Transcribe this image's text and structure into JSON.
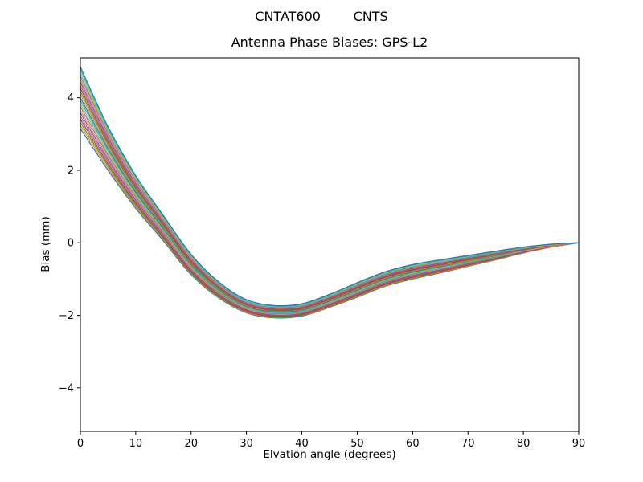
{
  "figure": {
    "suptitle": "CNTAT600        CNTS",
    "axes_title": "Antenna Phase Biases: GPS-L2",
    "xlabel": "Elvation angle (degrees)",
    "ylabel": "Bias (mm)"
  },
  "chart_data": {
    "type": "line",
    "suptitle": "CNTAT600        CNTS",
    "title": "Antenna Phase Biases: GPS-L2",
    "xlabel": "Elvation angle (degrees)",
    "ylabel": "Bias (mm)",
    "xlim": [
      0,
      90
    ],
    "ylim": [
      -5.2,
      5.1
    ],
    "x_ticks": [
      0,
      10,
      20,
      30,
      40,
      50,
      60,
      70,
      80,
      90
    ],
    "y_ticks": [
      -4,
      -2,
      0,
      2,
      4
    ],
    "y_tick_labels": [
      "−4",
      "−2",
      "0",
      "2",
      "4"
    ],
    "grid": false,
    "legend": "none",
    "frame_color": "#000000",
    "line_width": 1.2,
    "x": [
      0,
      5,
      10,
      15,
      20,
      25,
      30,
      35,
      40,
      45,
      50,
      55,
      60,
      65,
      70,
      75,
      80,
      85,
      90
    ],
    "series": [
      {
        "name": "line-01",
        "color": "#1f77b4",
        "values": [
          3.15,
          2.0,
          0.95,
          0.05,
          -0.88,
          -1.52,
          -1.93,
          -2.07,
          -2.02,
          -1.78,
          -1.5,
          -1.2,
          -1.0,
          -0.83,
          -0.65,
          -0.47,
          -0.28,
          -0.12,
          0.0
        ]
      },
      {
        "name": "line-02",
        "color": "#ff7f0e",
        "values": [
          3.24,
          2.06,
          1.0,
          0.09,
          -0.85,
          -1.5,
          -1.91,
          -2.05,
          -2.0,
          -1.76,
          -1.48,
          -1.18,
          -0.98,
          -0.81,
          -0.64,
          -0.46,
          -0.27,
          -0.12,
          0.0
        ]
      },
      {
        "name": "line-03",
        "color": "#2ca02c",
        "values": [
          3.32,
          2.12,
          1.04,
          0.12,
          -0.82,
          -1.48,
          -1.89,
          -2.04,
          -1.99,
          -1.74,
          -1.46,
          -1.16,
          -0.96,
          -0.79,
          -0.62,
          -0.45,
          -0.26,
          -0.11,
          0.0
        ]
      },
      {
        "name": "line-04",
        "color": "#d62728",
        "values": [
          3.41,
          2.18,
          1.09,
          0.16,
          -0.8,
          -1.45,
          -1.88,
          -2.02,
          -1.97,
          -1.73,
          -1.44,
          -1.14,
          -0.94,
          -0.78,
          -0.61,
          -0.43,
          -0.26,
          -0.11,
          0.0
        ]
      },
      {
        "name": "line-05",
        "color": "#9467bd",
        "values": [
          3.49,
          2.24,
          1.13,
          0.19,
          -0.77,
          -1.43,
          -1.86,
          -2.0,
          -1.95,
          -1.71,
          -1.42,
          -1.12,
          -0.92,
          -0.76,
          -0.59,
          -0.42,
          -0.25,
          -0.1,
          0.0
        ]
      },
      {
        "name": "line-06",
        "color": "#8c564b",
        "values": [
          3.58,
          2.3,
          1.18,
          0.23,
          -0.74,
          -1.41,
          -1.84,
          -1.99,
          -1.94,
          -1.69,
          -1.4,
          -1.1,
          -0.9,
          -0.74,
          -0.58,
          -0.41,
          -0.24,
          -0.1,
          0.0
        ]
      },
      {
        "name": "line-07",
        "color": "#e377c2",
        "values": [
          3.66,
          2.36,
          1.22,
          0.26,
          -0.71,
          -1.39,
          -1.82,
          -1.97,
          -1.92,
          -1.67,
          -1.38,
          -1.08,
          -0.88,
          -0.72,
          -0.56,
          -0.4,
          -0.23,
          -0.1,
          0.0
        ]
      },
      {
        "name": "line-08",
        "color": "#7f7f7f",
        "values": [
          3.75,
          2.42,
          1.27,
          0.3,
          -0.68,
          -1.37,
          -1.8,
          -1.95,
          -1.9,
          -1.65,
          -1.36,
          -1.06,
          -0.86,
          -0.7,
          -0.55,
          -0.39,
          -0.22,
          -0.09,
          0.0
        ]
      },
      {
        "name": "line-09",
        "color": "#bcbd22",
        "values": [
          3.83,
          2.48,
          1.31,
          0.33,
          -0.66,
          -1.34,
          -1.79,
          -1.93,
          -1.88,
          -1.64,
          -1.34,
          -1.04,
          -0.84,
          -0.69,
          -0.53,
          -0.37,
          -0.22,
          -0.09,
          0.0
        ]
      },
      {
        "name": "line-10",
        "color": "#17becf",
        "values": [
          3.92,
          2.54,
          1.36,
          0.37,
          -0.63,
          -1.32,
          -1.77,
          -1.92,
          -1.87,
          -1.62,
          -1.32,
          -1.02,
          -0.82,
          -0.67,
          -0.52,
          -0.36,
          -0.21,
          -0.08,
          0.0
        ]
      },
      {
        "name": "line-11",
        "color": "#1f77b4",
        "values": [
          4.0,
          2.6,
          1.4,
          0.4,
          -0.6,
          -1.3,
          -1.75,
          -1.9,
          -1.85,
          -1.6,
          -1.3,
          -1.0,
          -0.8,
          -0.65,
          -0.5,
          -0.35,
          -0.2,
          -0.08,
          0.0
        ]
      },
      {
        "name": "line-12",
        "color": "#ff7f0e",
        "values": [
          4.09,
          2.66,
          1.45,
          0.44,
          -0.57,
          -1.28,
          -1.73,
          -1.88,
          -1.83,
          -1.58,
          -1.28,
          -0.98,
          -0.78,
          -0.63,
          -0.49,
          -0.34,
          -0.19,
          -0.08,
          0.0
        ]
      },
      {
        "name": "line-13",
        "color": "#2ca02c",
        "values": [
          4.17,
          2.72,
          1.49,
          0.47,
          -0.54,
          -1.26,
          -1.71,
          -1.87,
          -1.82,
          -1.56,
          -1.26,
          -0.96,
          -0.76,
          -0.61,
          -0.47,
          -0.33,
          -0.18,
          -0.07,
          0.0
        ]
      },
      {
        "name": "line-14",
        "color": "#d62728",
        "values": [
          4.26,
          2.78,
          1.54,
          0.51,
          -0.52,
          -1.23,
          -1.7,
          -1.85,
          -1.8,
          -1.55,
          -1.24,
          -0.94,
          -0.74,
          -0.6,
          -0.46,
          -0.31,
          -0.18,
          -0.07,
          0.0
        ]
      },
      {
        "name": "line-15",
        "color": "#9467bd",
        "values": [
          4.34,
          2.84,
          1.58,
          0.54,
          -0.49,
          -1.21,
          -1.68,
          -1.83,
          -1.78,
          -1.53,
          -1.22,
          -0.92,
          -0.72,
          -0.58,
          -0.44,
          -0.3,
          -0.17,
          -0.06,
          0.0
        ]
      },
      {
        "name": "line-16",
        "color": "#8c564b",
        "values": [
          4.43,
          2.9,
          1.63,
          0.58,
          -0.46,
          -1.19,
          -1.66,
          -1.82,
          -1.77,
          -1.51,
          -1.2,
          -0.9,
          -0.7,
          -0.56,
          -0.43,
          -0.29,
          -0.16,
          -0.06,
          0.0
        ]
      },
      {
        "name": "line-17",
        "color": "#e377c2",
        "values": [
          4.51,
          2.96,
          1.67,
          0.61,
          -0.43,
          -1.17,
          -1.64,
          -1.8,
          -1.75,
          -1.49,
          -1.18,
          -0.88,
          -0.68,
          -0.54,
          -0.41,
          -0.28,
          -0.15,
          -0.06,
          0.0
        ]
      },
      {
        "name": "line-18",
        "color": "#7f7f7f",
        "values": [
          4.6,
          3.02,
          1.72,
          0.65,
          -0.4,
          -1.15,
          -1.62,
          -1.78,
          -1.73,
          -1.47,
          -1.16,
          -0.86,
          -0.66,
          -0.52,
          -0.4,
          -0.27,
          -0.14,
          -0.05,
          0.0
        ]
      },
      {
        "name": "line-19",
        "color": "#bcbd22",
        "values": [
          4.68,
          3.08,
          1.76,
          0.68,
          -0.38,
          -1.12,
          -1.61,
          -1.76,
          -1.71,
          -1.46,
          -1.14,
          -0.84,
          -0.64,
          -0.51,
          -0.38,
          -0.25,
          -0.14,
          -0.05,
          0.0
        ]
      },
      {
        "name": "line-20",
        "color": "#17becf",
        "values": [
          4.77,
          3.14,
          1.81,
          0.72,
          -0.35,
          -1.1,
          -1.6,
          -1.75,
          -1.7,
          -1.44,
          -1.12,
          -0.82,
          -0.62,
          -0.49,
          -0.37,
          -0.24,
          -0.13,
          -0.04,
          0.0
        ]
      },
      {
        "name": "line-21",
        "color": "#1f77b4",
        "values": [
          4.85,
          3.2,
          1.85,
          0.75,
          -0.32,
          -1.08,
          -1.57,
          -1.73,
          -1.68,
          -1.42,
          -1.1,
          -0.8,
          -0.6,
          -0.47,
          -0.35,
          -0.23,
          -0.12,
          -0.04,
          0.0
        ]
      }
    ]
  }
}
